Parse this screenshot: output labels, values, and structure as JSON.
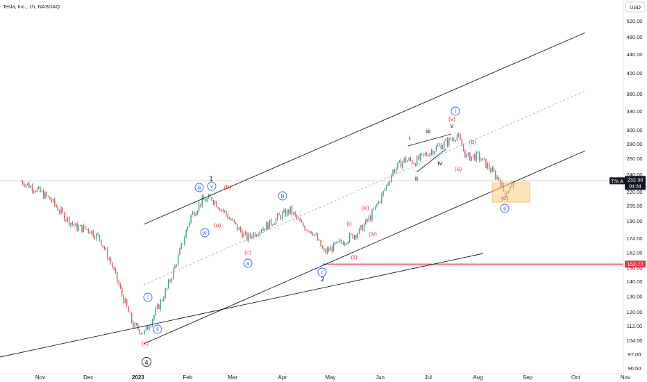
{
  "header": {
    "title": "Tesla, Inc., 1h, NASDAQ",
    "currency": "USD"
  },
  "price_tags": {
    "ticker": "TSLA",
    "last_price": "232.30",
    "countdown": "04:34",
    "level_price": "152.72"
  },
  "colors": {
    "up_candle": "#26a69a",
    "down_candle": "#ef5350",
    "red_label": "#f23645",
    "blue_label": "#2962ff",
    "horizontal_level": "#f23645",
    "target_zone": "#ffcc80"
  },
  "chart_data": {
    "type": "line",
    "title": "",
    "xlabel": "",
    "ylabel": "",
    "y_scale": "log",
    "ylim": [
      90.5,
      560
    ],
    "x_ticks": [
      "Nov",
      "Dec",
      "2023",
      "Feb",
      "Mar",
      "Apr",
      "May",
      "Jun",
      "Jul",
      "Aug",
      "Sep",
      "Oct",
      "Nov"
    ],
    "y_ticks": [
      "520.00",
      "480.00",
      "440.00",
      "400.00",
      "360.00",
      "330.00",
      "300.00",
      "280.00",
      "260.00",
      "240.00",
      "220.00",
      "205.00",
      "190.00",
      "174.00",
      "162.00",
      "150.00",
      "140.00",
      "130.00",
      "120.00",
      "112.00",
      "104.00",
      "97.00",
      "90.50"
    ],
    "series": [
      {
        "x": [
          "2022-10-20",
          "2022-10-28",
          "2022-11-07",
          "2022-11-15",
          "2022-11-23",
          "2022-12-01",
          "2022-12-08",
          "2022-12-15",
          "2022-12-22",
          "2022-12-29",
          "2023-01-05",
          "2023-01-12",
          "2023-01-19",
          "2023-01-26",
          "2023-02-03",
          "2023-02-10",
          "2023-02-16",
          "2023-02-24",
          "2023-03-03",
          "2023-03-10",
          "2023-03-17",
          "2023-03-24",
          "2023-03-31",
          "2023-04-06",
          "2023-04-13",
          "2023-04-20",
          "2023-04-27",
          "2023-05-05",
          "2023-05-12",
          "2023-05-19",
          "2023-05-26",
          "2023-06-02",
          "2023-06-09",
          "2023-06-16",
          "2023-06-23",
          "2023-06-30",
          "2023-07-07",
          "2023-07-14",
          "2023-07-19",
          "2023-07-25",
          "2023-08-01",
          "2023-08-08",
          "2023-08-14",
          "2023-08-18",
          "2023-08-24"
        ],
        "values": [
          232,
          224,
          212,
          196,
          184,
          182,
          174,
          154,
          131,
          112,
          108,
          120,
          135,
          158,
          195,
          210,
          213,
          198,
          185,
          174,
          181,
          187,
          195,
          200,
          186,
          180,
          162,
          168,
          174,
          180,
          194,
          215,
          244,
          258,
          256,
          266,
          276,
          284,
          293,
          262,
          263,
          248,
          234,
          218,
          232
        ]
      }
    ],
    "horizontal_line": 232.3,
    "support_level": 152.72,
    "wave_labels": {
      "circled": [
        "i",
        "ii",
        "iii",
        "iv",
        "v",
        "a",
        "b",
        "c",
        "i",
        "ii"
      ],
      "parenthesized": [
        "(b)",
        "(a)",
        "(c)",
        "(c)",
        "(i)",
        "(ii)",
        "(iii)",
        "(iv)",
        "(v)",
        "(a)",
        "(b)",
        "(c)"
      ],
      "plain": [
        "1",
        "2",
        "i",
        "ii",
        "iii",
        "iv",
        "v"
      ],
      "major": "4"
    }
  }
}
